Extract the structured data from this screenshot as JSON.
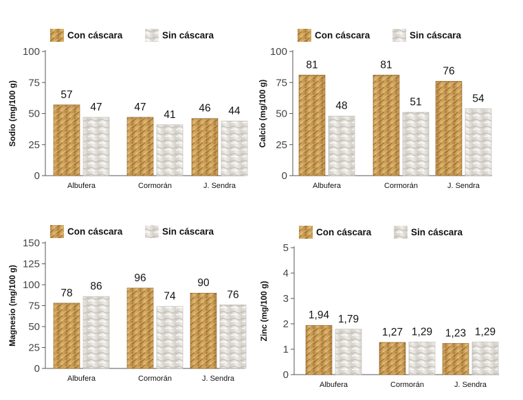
{
  "colors": {
    "con": "#c99a52",
    "con_dark": "#8a5e22",
    "con_light": "#e8c98a",
    "sin": "#dcd9d3",
    "sin_dark": "#b9b5ae",
    "sin_light": "#f6f5f2",
    "axis": "#555555",
    "text": "#111111"
  },
  "chart_data": [
    {
      "type": "bar",
      "title": "",
      "ylabel": "Sodio (mg/100 g)",
      "xlabel": "",
      "categories": [
        "Albufera",
        "Cormorán",
        "J. Sendra"
      ],
      "series": [
        {
          "name": "Con cáscara",
          "values": [
            57,
            47,
            46
          ],
          "labels": [
            "57",
            "47",
            "46"
          ]
        },
        {
          "name": "Sin cáscara",
          "values": [
            47,
            41,
            44
          ],
          "labels": [
            "47",
            "41",
            "44"
          ]
        }
      ],
      "ylim": [
        0,
        100
      ],
      "ticks": [
        0,
        25,
        50,
        75,
        100
      ],
      "tick_labels": [
        "0",
        "25",
        "50",
        "75",
        "100"
      ],
      "legend": "top"
    },
    {
      "type": "bar",
      "title": "",
      "ylabel": "Calcio (mg/100 g)",
      "xlabel": "",
      "categories": [
        "Albufera",
        "Cormorán",
        "J. Sendra"
      ],
      "series": [
        {
          "name": "Con cáscara",
          "values": [
            81,
            81,
            76
          ],
          "labels": [
            "81",
            "81",
            "76"
          ]
        },
        {
          "name": "Sin cáscara",
          "values": [
            48,
            51,
            54
          ],
          "labels": [
            "48",
            "51",
            "54"
          ]
        }
      ],
      "ylim": [
        0,
        100
      ],
      "ticks": [
        0,
        25,
        50,
        75,
        100
      ],
      "tick_labels": [
        "0",
        "25",
        "50",
        "75",
        "100"
      ],
      "legend": "top"
    },
    {
      "type": "bar",
      "title": "",
      "ylabel": "Magnesio (mg/100 g)",
      "xlabel": "",
      "categories": [
        "Albufera",
        "Cormorán",
        "J. Sendra"
      ],
      "series": [
        {
          "name": "Con cáscara",
          "values": [
            78,
            96,
            90
          ],
          "labels": [
            "78",
            "96",
            "90"
          ]
        },
        {
          "name": "Sin cáscara",
          "values": [
            86,
            74,
            76
          ],
          "labels": [
            "86",
            "74",
            "76"
          ]
        }
      ],
      "ylim": [
        0,
        150
      ],
      "ticks": [
        0,
        25,
        50,
        75,
        100,
        125,
        150
      ],
      "tick_labels": [
        "0",
        "25",
        "50",
        "75",
        "100",
        "125",
        "150"
      ],
      "legend": "top"
    },
    {
      "type": "bar",
      "title": "",
      "ylabel": "Zinc (mg/100 g)",
      "xlabel": "",
      "categories": [
        "Albufera",
        "Cormorán",
        "J. Sendra"
      ],
      "series": [
        {
          "name": "Con cáscara",
          "values": [
            1.94,
            1.27,
            1.23
          ],
          "labels": [
            "1,94",
            "1,27",
            "1,23"
          ]
        },
        {
          "name": "Sin cáscara",
          "values": [
            1.79,
            1.29,
            1.29
          ],
          "labels": [
            "1,79",
            "1,29",
            "1,29"
          ]
        }
      ],
      "ylim": [
        0,
        5
      ],
      "ticks": [
        0,
        1,
        2,
        3,
        4,
        5
      ],
      "tick_labels": [
        "0",
        "1",
        "2",
        "3",
        "4",
        "5"
      ],
      "legend": "top"
    }
  ]
}
